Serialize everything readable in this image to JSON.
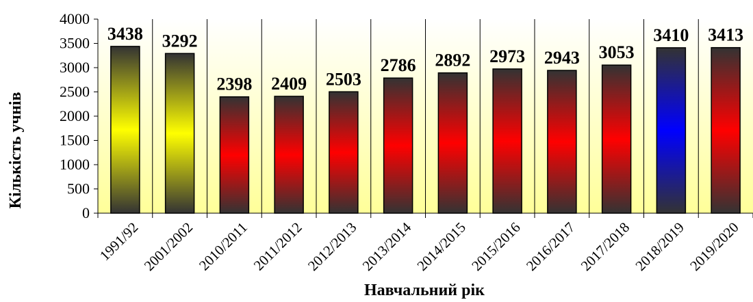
{
  "chart_data": {
    "type": "bar",
    "x_label": "Навчальний рік",
    "y_label": "Кількість учнів",
    "categories": [
      "1991/92",
      "2001/2002",
      "2010/2011",
      "2011/2012",
      "2012/2013",
      "2013/2014",
      "2014/2015",
      "2015/2016",
      "2016/2017",
      "2017/2018",
      "2018/2019",
      "2019/2020"
    ],
    "values": [
      3438,
      3292,
      2398,
      2409,
      2503,
      2786,
      2892,
      2973,
      2943,
      3053,
      3410,
      3413
    ],
    "colors": [
      "#ffff00",
      "#ffff00",
      "#ff0000",
      "#ff0000",
      "#ff0000",
      "#ff0000",
      "#ff0000",
      "#ff0000",
      "#ff0000",
      "#ff0000",
      "#0000ff",
      "#ff0000"
    ],
    "ylim": [
      0,
      4000
    ],
    "yticks": [
      0,
      500,
      1000,
      1500,
      2000,
      2500,
      3000,
      3500,
      4000
    ],
    "grid": true
  }
}
